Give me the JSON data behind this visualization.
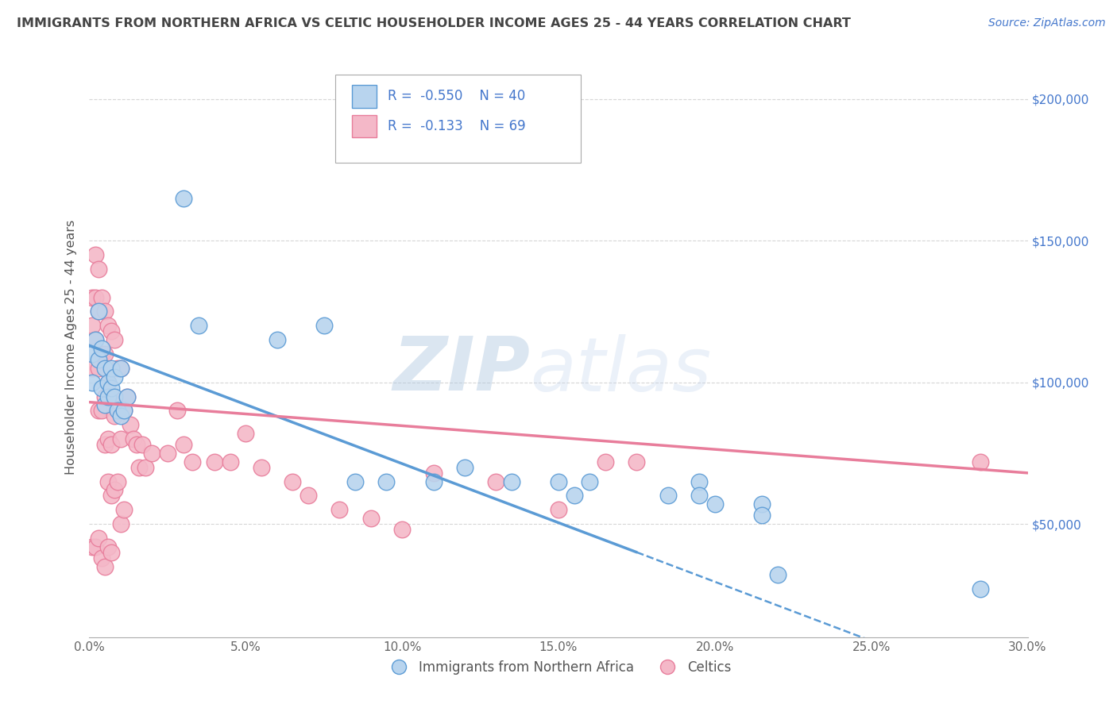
{
  "title": "IMMIGRANTS FROM NORTHERN AFRICA VS CELTIC HOUSEHOLDER INCOME AGES 25 - 44 YEARS CORRELATION CHART",
  "source": "Source: ZipAtlas.com",
  "ylabel": "Householder Income Ages 25 - 44 years",
  "xlim": [
    0.0,
    0.3
  ],
  "ylim": [
    10000,
    215000
  ],
  "yticks": [
    50000,
    100000,
    150000,
    200000
  ],
  "ytick_labels": [
    "$50,000",
    "$100,000",
    "$150,000",
    "$200,000"
  ],
  "xticks": [
    0.0,
    0.05,
    0.1,
    0.15,
    0.2,
    0.25,
    0.3
  ],
  "xtick_labels": [
    "0.0%",
    "5.0%",
    "10.0%",
    "15.0%",
    "20.0%",
    "25.0%",
    "30.0%"
  ],
  "series1_color": "#5b9bd5",
  "series1_face": "#b8d4ee",
  "series2_color": "#e87d9b",
  "series2_face": "#f4b8c8",
  "R1": -0.55,
  "N1": 40,
  "R2": -0.133,
  "N2": 69,
  "legend_label1": "Immigrants from Northern Africa",
  "legend_label2": "Celtics",
  "watermark_zip": "ZIP",
  "watermark_atlas": "atlas",
  "background_color": "#ffffff",
  "grid_color": "#cccccc",
  "title_color": "#444444",
  "axis_color": "#4477cc",
  "blue_trend_x0": 0.0,
  "blue_trend_y0": 113000,
  "blue_trend_x1": 0.175,
  "blue_trend_y1": 40000,
  "pink_trend_x0": 0.0,
  "pink_trend_y0": 93000,
  "pink_trend_x1": 0.3,
  "pink_trend_y1": 68000,
  "blue_scatter_x": [
    0.001,
    0.001,
    0.002,
    0.003,
    0.003,
    0.004,
    0.004,
    0.005,
    0.005,
    0.006,
    0.006,
    0.007,
    0.007,
    0.008,
    0.008,
    0.009,
    0.01,
    0.01,
    0.011,
    0.012,
    0.03,
    0.035,
    0.06,
    0.075,
    0.085,
    0.095,
    0.11,
    0.12,
    0.135,
    0.15,
    0.155,
    0.16,
    0.185,
    0.195,
    0.195,
    0.2,
    0.215,
    0.215,
    0.22,
    0.285
  ],
  "blue_scatter_y": [
    110000,
    100000,
    115000,
    125000,
    108000,
    112000,
    98000,
    105000,
    92000,
    100000,
    95000,
    105000,
    98000,
    102000,
    95000,
    90000,
    105000,
    88000,
    90000,
    95000,
    165000,
    120000,
    115000,
    120000,
    65000,
    65000,
    65000,
    70000,
    65000,
    65000,
    60000,
    65000,
    60000,
    65000,
    60000,
    57000,
    57000,
    53000,
    32000,
    27000
  ],
  "pink_scatter_x": [
    0.001,
    0.001,
    0.001,
    0.001,
    0.002,
    0.002,
    0.002,
    0.002,
    0.003,
    0.003,
    0.003,
    0.003,
    0.003,
    0.004,
    0.004,
    0.004,
    0.004,
    0.005,
    0.005,
    0.005,
    0.005,
    0.005,
    0.006,
    0.006,
    0.006,
    0.006,
    0.006,
    0.007,
    0.007,
    0.007,
    0.007,
    0.007,
    0.008,
    0.008,
    0.008,
    0.009,
    0.009,
    0.01,
    0.01,
    0.01,
    0.011,
    0.011,
    0.012,
    0.013,
    0.014,
    0.015,
    0.016,
    0.017,
    0.018,
    0.02,
    0.025,
    0.028,
    0.03,
    0.033,
    0.04,
    0.045,
    0.05,
    0.055,
    0.065,
    0.07,
    0.08,
    0.09,
    0.1,
    0.11,
    0.13,
    0.15,
    0.165,
    0.175,
    0.285
  ],
  "pink_scatter_y": [
    130000,
    120000,
    105000,
    42000,
    145000,
    130000,
    115000,
    42000,
    140000,
    125000,
    105000,
    90000,
    45000,
    130000,
    110000,
    90000,
    38000,
    125000,
    110000,
    95000,
    78000,
    35000,
    120000,
    100000,
    80000,
    65000,
    42000,
    118000,
    95000,
    78000,
    60000,
    40000,
    115000,
    88000,
    62000,
    105000,
    65000,
    105000,
    80000,
    50000,
    90000,
    55000,
    95000,
    85000,
    80000,
    78000,
    70000,
    78000,
    70000,
    75000,
    75000,
    90000,
    78000,
    72000,
    72000,
    72000,
    82000,
    70000,
    65000,
    60000,
    55000,
    52000,
    48000,
    68000,
    65000,
    55000,
    72000,
    72000,
    72000
  ]
}
